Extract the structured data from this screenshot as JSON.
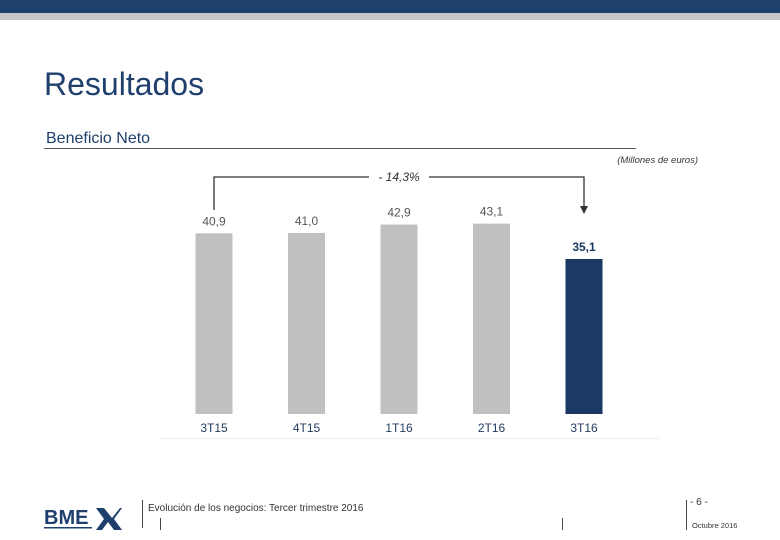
{
  "slide": {
    "title": "Resultados",
    "subtitle": "Beneficio Neto",
    "units": "(Millones de euros)"
  },
  "chart_data": {
    "type": "bar",
    "categories": [
      "3T15",
      "4T15",
      "1T16",
      "2T16",
      "3T16"
    ],
    "values": [
      40.9,
      41.0,
      42.9,
      43.1,
      35.1
    ],
    "value_labels": [
      "40,9",
      "41,0",
      "42,9",
      "43,1",
      "35,1"
    ],
    "bar_colors": [
      "#c0c0c0",
      "#c0c0c0",
      "#c0c0c0",
      "#c0c0c0",
      "#1b3a63"
    ],
    "annotation": "- 14,3%",
    "ylim": [
      0,
      48
    ]
  },
  "footer": {
    "logo_text": "BME",
    "description": "Evolución de los negocios: Tercer trimestre 2016",
    "page": "- 6 -",
    "date": "Octubre 2016"
  },
  "colors": {
    "brand_dark": "#1f3f6c",
    "bar_gray": "#c0c0c0",
    "bar_highlight": "#1b3a63"
  }
}
